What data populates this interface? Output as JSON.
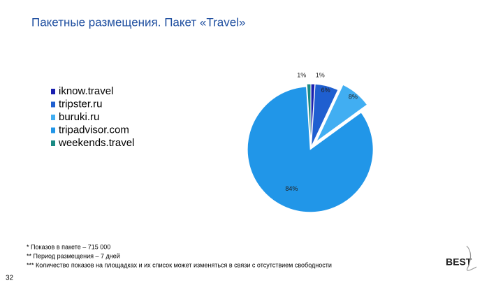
{
  "chart_data": {
    "type": "pie",
    "title": "Пакетные размещения. Пакет «Travel»",
    "categories": [
      "iknow.travel",
      "tripster.ru",
      "buruki.ru",
      "tripadvisor.com",
      "weekends.travel"
    ],
    "values": [
      1,
      6,
      8,
      84,
      1
    ],
    "value_labels": [
      "1%",
      "6%",
      "8%",
      "84%",
      "1%"
    ],
    "colors": [
      "#1a1fb0",
      "#1f5fd0",
      "#41aef2",
      "#2196e8",
      "#1a8a84"
    ],
    "exploded": [
      false,
      false,
      true,
      false,
      false
    ],
    "legend": "left"
  },
  "footnotes": [
    "* Показов в пакете – 715 000",
    "** Период размещения – 7 дней",
    "*** Количество показов на площадках и их список может изменяться в связи с отсутствием свободности"
  ],
  "page_number": "32",
  "logo": "BEST"
}
